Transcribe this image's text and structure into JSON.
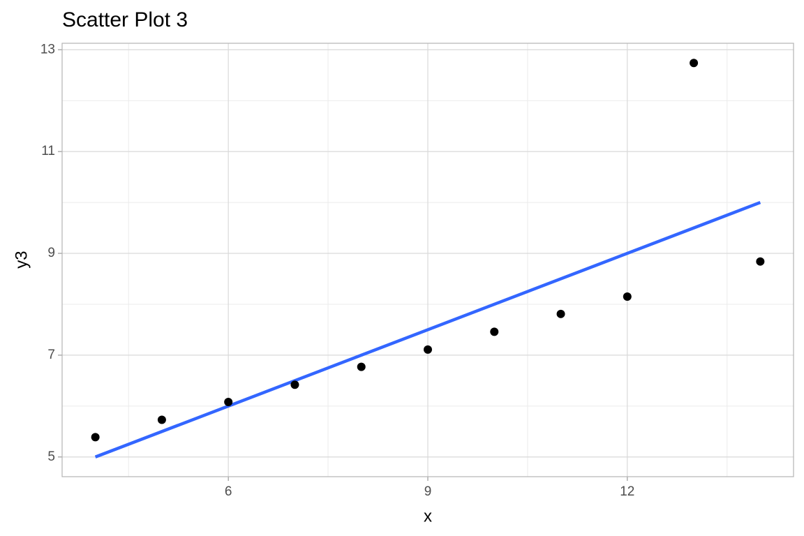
{
  "chart_data": {
    "type": "scatter",
    "title": "Scatter Plot 3",
    "xlabel": "x",
    "ylabel": "y3",
    "x": [
      10,
      8,
      13,
      9,
      11,
      14,
      6,
      4,
      12,
      7,
      5
    ],
    "values": [
      7.46,
      6.77,
      12.74,
      7.11,
      7.81,
      8.84,
      6.08,
      5.39,
      8.15,
      6.42,
      5.73
    ],
    "color": "#000000",
    "trend_line": {
      "x": [
        4,
        14
      ],
      "values": [
        5,
        10
      ],
      "color": "#3366FF"
    },
    "xlim": [
      3.5,
      14.5
    ],
    "xticks": [
      6,
      9,
      12
    ],
    "x_minor_grid": [
      4.5,
      7.5,
      10.5,
      13.5
    ],
    "ylim": [
      4.613,
      13.127
    ],
    "yticks": [
      5,
      7,
      9,
      11,
      13
    ],
    "y_minor_grid": [
      6,
      8,
      10,
      12
    ],
    "grid": true
  }
}
